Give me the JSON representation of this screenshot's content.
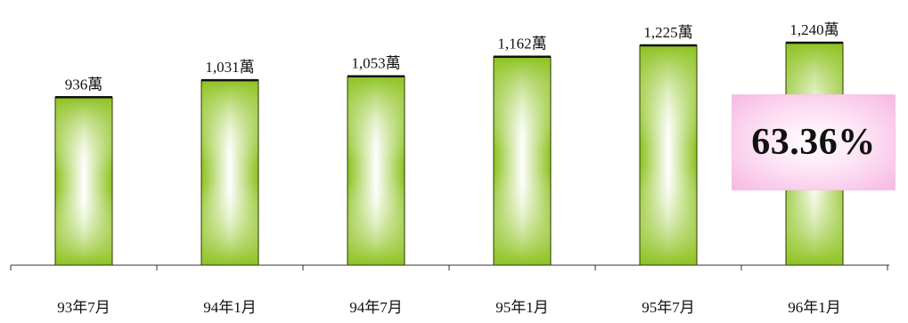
{
  "chart_data": {
    "type": "bar",
    "categories": [
      "93年7月",
      "94年1月",
      "94年7月",
      "95年1月",
      "95年7月",
      "96年1月"
    ],
    "values": [
      936,
      1031,
      1053,
      1162,
      1225,
      1240
    ],
    "data_labels": [
      "936萬",
      "1,031萬",
      "1,053萬",
      "1,162萬",
      "1,225萬",
      "1,240萬"
    ],
    "unit": "萬",
    "ylim": [
      0,
      1240
    ],
    "grid": false,
    "legend": "none",
    "bar_color": "#8dc21f",
    "bar_highlight": "#ffffff",
    "annotations": [
      {
        "text": "63.36%",
        "color": "#f7b8e3"
      }
    ]
  }
}
